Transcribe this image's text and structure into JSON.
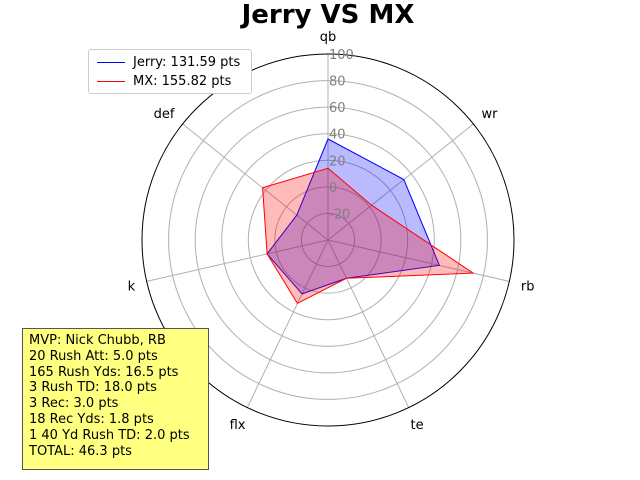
{
  "chart_data": {
    "type": "radar",
    "title": "Jerry VS MX",
    "axes": [
      "qb",
      "wr",
      "rb",
      "te",
      "flx",
      "k",
      "def"
    ],
    "radial_ticks": [
      -20,
      0,
      20,
      40,
      60,
      80,
      100
    ],
    "rlim": [
      -40,
      100
    ],
    "grid": true,
    "legend_position": "top-left",
    "series": [
      {
        "name": "Jerry: 131.59 pts",
        "values": [
          36,
          33,
          46,
          -8,
          5,
          7,
          -10
        ],
        "color": "#0000ff",
        "fill": "#0000ff"
      },
      {
        "name": "MX: 155.82 pts",
        "values": [
          14,
          2,
          72,
          -8,
          13,
          7,
          23
        ],
        "color": "#ff0000",
        "fill": "#ff0000"
      }
    ]
  },
  "legend": {
    "items": [
      {
        "label": "Jerry: 131.59 pts",
        "color": "#0000ff"
      },
      {
        "label": "MX: 155.82 pts",
        "color": "#ff0000"
      }
    ]
  },
  "mvp_box": {
    "lines": [
      "MVP: Nick Chubb, RB",
      "20 Rush Att: 5.0 pts",
      "165 Rush Yds: 16.5 pts",
      "3 Rush TD: 18.0 pts",
      "3 Rec: 3.0 pts",
      "18 Rec Yds: 1.8 pts",
      "1 40 Yd Rush TD: 2.0 pts",
      "TOTAL: 46.3 pts"
    ],
    "background": "#ffff80"
  }
}
